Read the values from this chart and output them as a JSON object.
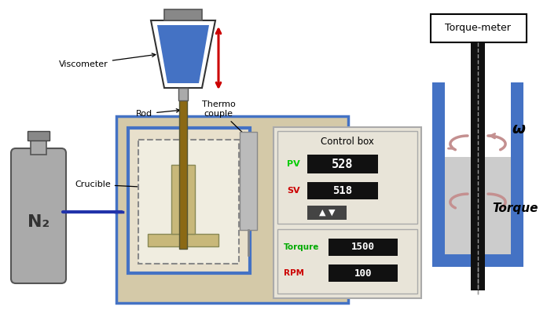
{
  "bg_color": "#ffffff",
  "main_box_color": "#d4c9a8",
  "main_box_border": "#4472c4",
  "furnace_inner_color": "#4472c4",
  "crucible_color": "#c8b87a",
  "n2_tank_color": "#aaaaaa",
  "n2_tank_border": "#555555",
  "viscometer_blue": "#4472c4",
  "viscometer_border": "#333333",
  "rod_color": "#8B6914",
  "rod_border": "#555533",
  "thermocouple_color": "#bbbbbb",
  "red_arrow_color": "#cc0000",
  "display_black": "#111111",
  "display_green": "#00cc00",
  "display_red": "#cc0000",
  "torque_blue": "#4472c4",
  "torque_rod_color": "#111111",
  "torque_liquid_color": "#cccccc",
  "labels": {
    "viscometer": "Viscometer",
    "rod": "Rod",
    "crucible": "Crucible",
    "thermo": "Thermo\ncouple",
    "n2": "N₂",
    "control_box": "Control box",
    "pv_label": "PV",
    "pv_value": "528",
    "sv_label": "SV",
    "sv_value": "518",
    "torque_label": "Torqure",
    "torque_value": "1500",
    "rpm_label": "RPM",
    "rpm_value": "100",
    "torquemeter": "Torque-meter",
    "omega": "ω",
    "torque_text": "Torque"
  }
}
